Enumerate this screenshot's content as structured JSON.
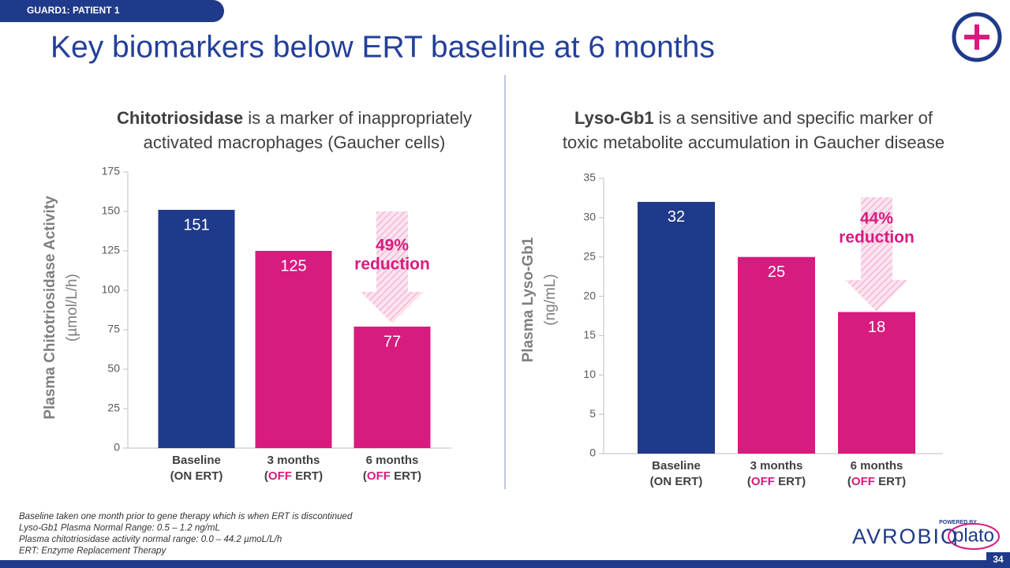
{
  "header": {
    "tag": "GUARD1: PATIENT 1",
    "title": "Key biomarkers below ERT baseline at 6 months"
  },
  "chart_data": [
    {
      "type": "bar",
      "subtitle": [
        {
          "text": "Chitotriosidase",
          "bold": true
        },
        {
          "text": " is a marker of inappropriately"
        }
      ],
      "subtitle_line2": "activated macrophages (Gaucher cells)",
      "y_label": "Plasma Chitotriosidase Activity",
      "y_unit": "(µmol/L/h)",
      "categories": [
        "Baseline",
        "3 months",
        "6 months"
      ],
      "category_sublabels": [
        [
          {
            "text": "(ON ERT)"
          }
        ],
        [
          {
            "text": "("
          },
          {
            "text": "OFF",
            "color": "#d81b7f"
          },
          {
            "text": " ERT)"
          }
        ],
        [
          {
            "text": "("
          },
          {
            "text": "OFF",
            "color": "#d81b7f"
          },
          {
            "text": " ERT)"
          }
        ]
      ],
      "values": [
        151,
        125,
        77
      ],
      "colors": [
        "#1f3a8a",
        "#d81b7f",
        "#d81b7f"
      ],
      "ylim": [
        0,
        175
      ],
      "yticks": [
        0,
        25,
        50,
        75,
        100,
        125,
        150,
        175
      ],
      "annotation": [
        "49%",
        "reduction"
      ]
    },
    {
      "type": "bar",
      "subtitle": [
        {
          "text": "Lyso-Gb1",
          "bold": true
        },
        {
          "text": " is a sensitive and specific marker of"
        }
      ],
      "subtitle_line2": "toxic metabolite accumulation in Gaucher disease",
      "y_label": "Plasma Lyso-Gb1",
      "y_unit": "(ng/mL)",
      "categories": [
        "Baseline",
        "3 months",
        "6 months"
      ],
      "category_sublabels": [
        [
          {
            "text": "(ON ERT)"
          }
        ],
        [
          {
            "text": "("
          },
          {
            "text": "OFF",
            "color": "#d81b7f"
          },
          {
            "text": " ERT)"
          }
        ],
        [
          {
            "text": "("
          },
          {
            "text": "OFF",
            "color": "#d81b7f"
          },
          {
            "text": " ERT)"
          }
        ]
      ],
      "values": [
        32,
        25,
        18
      ],
      "colors": [
        "#1f3a8a",
        "#d81b7f",
        "#d81b7f"
      ],
      "ylim": [
        0,
        35
      ],
      "yticks": [
        0,
        5,
        10,
        15,
        20,
        25,
        30,
        35
      ],
      "annotation": [
        "44%",
        "reduction"
      ]
    }
  ],
  "footnotes": [
    "Baseline taken one month prior to gene therapy which is when ERT is discontinued",
    "Lyso-Gb1 Plasma Normal Range: 0.5 – 1.2 ng/mL",
    "Plasma chitotriosidase activity normal range: 0.0 – 44.2 µmoL/L/h",
    "ERT: Enzyme Replacement Therapy"
  ],
  "logo": {
    "powered": "POWERED BY",
    "name": "AVROBIO",
    "partner": "plato"
  },
  "page_number": "34"
}
